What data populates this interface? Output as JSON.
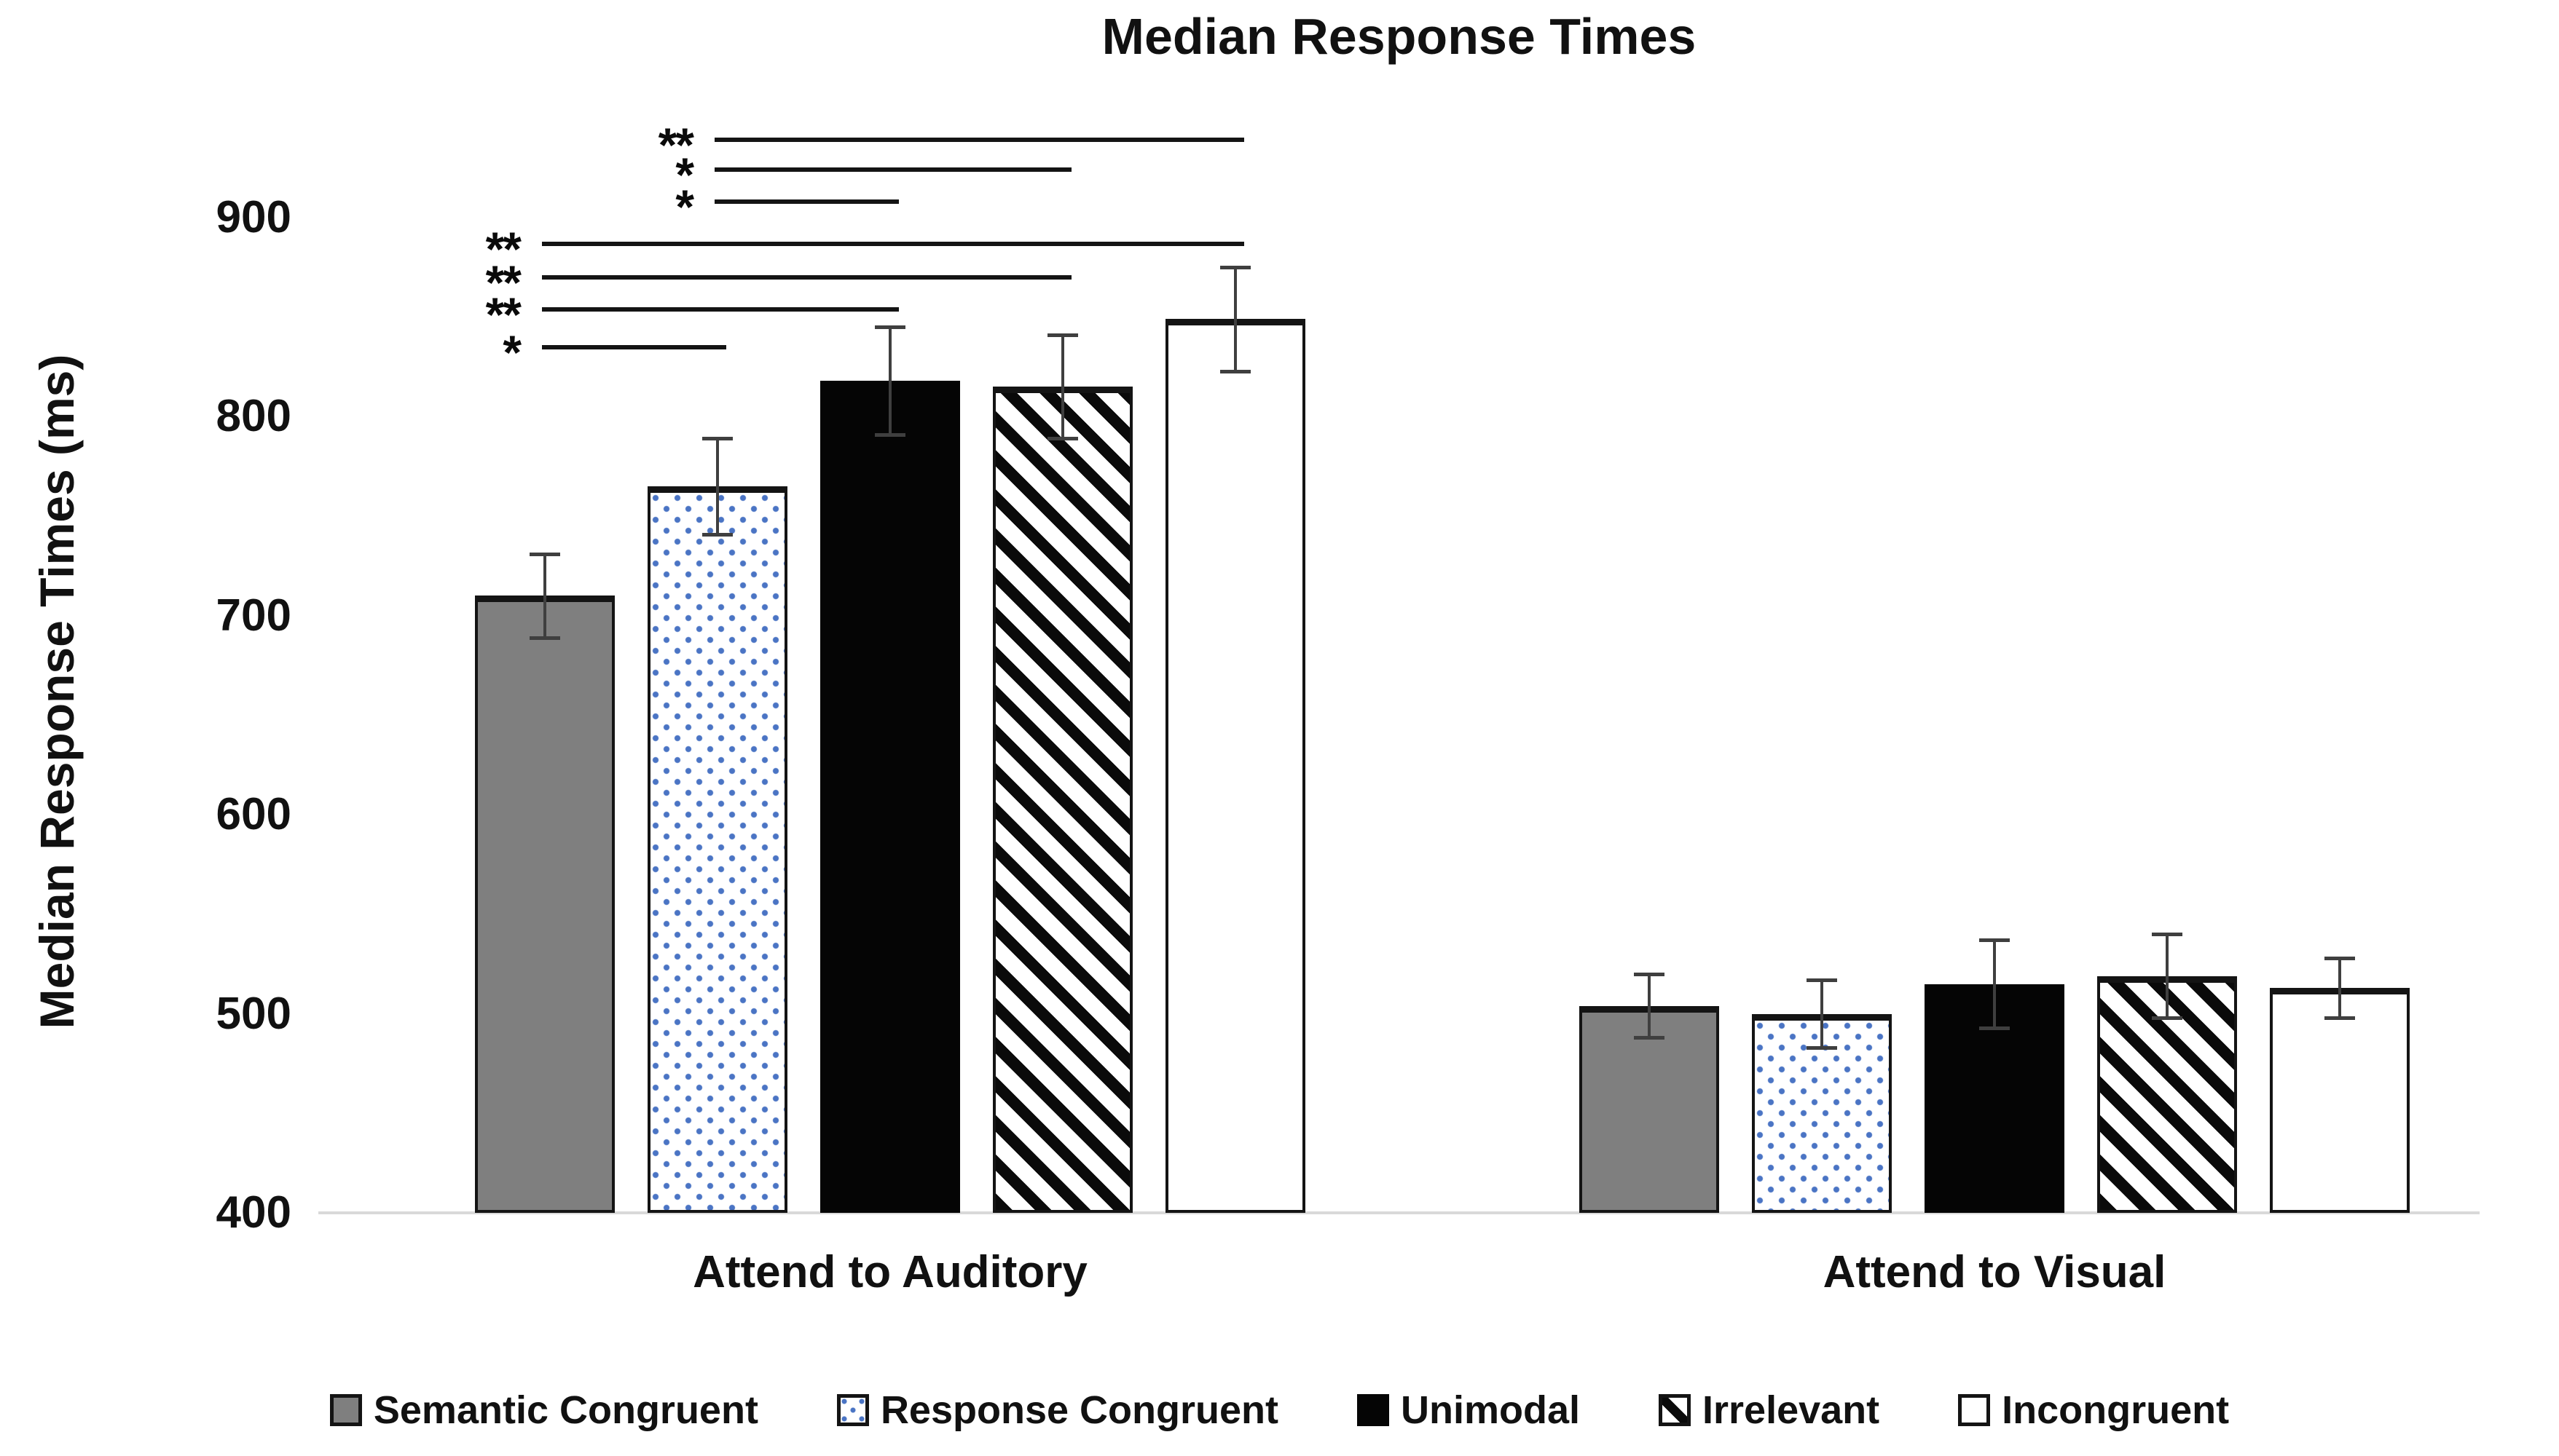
{
  "title": "Median Response Times",
  "y_axis": {
    "label": "Median Response Times (ms)",
    "ticks": [
      "400",
      "500",
      "600",
      "700",
      "800",
      "900"
    ]
  },
  "x_axis": {
    "group_labels": [
      "Attend to Auditory",
      "Attend to Visual"
    ]
  },
  "legend": {
    "items": [
      {
        "label": "Semantic Congruent",
        "pattern": "solid-gray"
      },
      {
        "label": "Response Congruent",
        "pattern": "blue-dotted"
      },
      {
        "label": "Unimodal",
        "pattern": "solid-black"
      },
      {
        "label": "Irrelevant",
        "pattern": "diagonal-stripes"
      },
      {
        "label": "Incongruent",
        "pattern": "white-outline"
      }
    ]
  },
  "colors": {
    "bar_gray": "#7f7f7f",
    "dot_blue": "#4a74c4",
    "bar_black": "#050505",
    "bar_white": "#ffffff",
    "baseline_gray": "#d9d9d9",
    "error_bar_gray": "#3f3f3f",
    "significance_black": "#141414"
  },
  "chart_data": {
    "type": "bar",
    "title": "Median Response Times",
    "xlabel": "",
    "ylabel": "Median Response Times (ms)",
    "ylim": [
      400,
      900
    ],
    "yticks": [
      400,
      500,
      600,
      700,
      800,
      900
    ],
    "grid": false,
    "legend_position": "bottom",
    "categories": [
      "Attend to Auditory",
      "Attend to Visual"
    ],
    "series": [
      {
        "name": "Semantic Congruent",
        "pattern": "solid-gray",
        "values": [
          710,
          504
        ],
        "errors": [
          21,
          16
        ]
      },
      {
        "name": "Response Congruent",
        "pattern": "blue-dotted",
        "values": [
          765,
          500
        ],
        "errors": [
          24,
          17
        ]
      },
      {
        "name": "Unimodal",
        "pattern": "solid-black",
        "values": [
          818,
          515
        ],
        "errors": [
          27,
          22
        ]
      },
      {
        "name": "Irrelevant",
        "pattern": "diagonal-stripes",
        "values": [
          815,
          519
        ],
        "errors": [
          26,
          21
        ]
      },
      {
        "name": "Incongruent",
        "pattern": "white-outline",
        "values": [
          849,
          513
        ],
        "errors": [
          26,
          15
        ]
      }
    ],
    "significance_brackets": [
      {
        "group": 0,
        "from": 1,
        "to": 4,
        "label": "**",
        "height_ms": 939
      },
      {
        "group": 0,
        "from": 1,
        "to": 3,
        "label": "*",
        "height_ms": 924
      },
      {
        "group": 0,
        "from": 1,
        "to": 2,
        "label": "*",
        "height_ms": 908
      },
      {
        "group": 0,
        "from": 0,
        "to": 4,
        "label": "**",
        "height_ms": 887
      },
      {
        "group": 0,
        "from": 0,
        "to": 3,
        "label": "**",
        "height_ms": 870
      },
      {
        "group": 0,
        "from": 0,
        "to": 2,
        "label": "**",
        "height_ms": 854
      },
      {
        "group": 0,
        "from": 0,
        "to": 1,
        "label": "*",
        "height_ms": 835
      }
    ]
  }
}
